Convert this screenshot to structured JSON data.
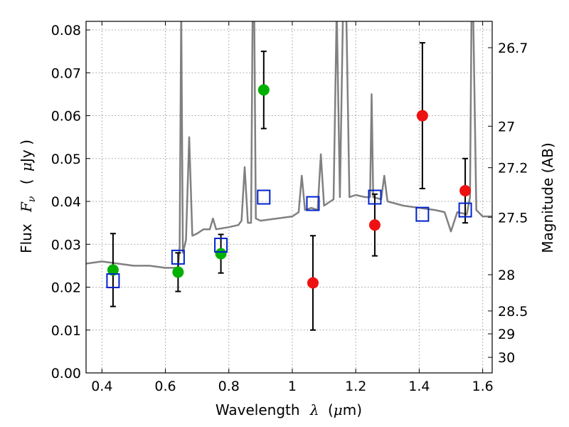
{
  "chart_data": {
    "type": "scatter",
    "x_axis": {
      "label_parts": {
        "text": "Wavelength",
        "symbol": "λ",
        "open": "(",
        "mu": "μ",
        "unit": "m)"
      },
      "range": [
        0.35,
        1.63
      ],
      "ticks": [
        0.4,
        0.6,
        0.8,
        1.0,
        1.2,
        1.4,
        1.6
      ],
      "tick_labels": [
        "0.4",
        "0.6",
        "0.8",
        "1",
        "1.2",
        "1.4",
        "1.6"
      ]
    },
    "y_axis": {
      "label_parts": {
        "text": "Flux",
        "symbol": "F",
        "subscript": "ν",
        "open": "(",
        "mu": "μ",
        "unit": "Jy )"
      },
      "range": [
        0.0,
        0.082
      ],
      "ticks": [
        0.0,
        0.01,
        0.02,
        0.03,
        0.04,
        0.05,
        0.06,
        0.07,
        0.08
      ],
      "tick_labels": [
        "0.00",
        "0.01",
        "0.02",
        "0.03",
        "0.04",
        "0.05",
        "0.06",
        "0.07",
        "0.08"
      ]
    },
    "y2_axis": {
      "label": "Magnitude (AB)",
      "ticks": [
        26.7,
        27.0,
        27.2,
        27.5,
        28.0,
        28.5,
        29.0,
        30.0
      ],
      "tick_labels": [
        "26.7",
        "27",
        "27.2",
        "27.5",
        "28",
        "28.5",
        "29",
        "30"
      ]
    },
    "grid": true,
    "series": [
      {
        "kind": "green_points",
        "color": "#00b000",
        "points": [
          {
            "x": 0.435,
            "y": 0.024,
            "err": 0.0085
          },
          {
            "x": 0.64,
            "y": 0.0235,
            "err": 0.0045
          },
          {
            "x": 0.775,
            "y": 0.0278,
            "err": 0.0045
          },
          {
            "x": 0.91,
            "y": 0.066,
            "err": 0.009
          }
        ]
      },
      {
        "kind": "red_points",
        "color": "#ee1111",
        "points": [
          {
            "x": 1.065,
            "y": 0.021,
            "err": 0.011
          },
          {
            "x": 1.26,
            "y": 0.0345,
            "err": 0.0072
          },
          {
            "x": 1.41,
            "y": 0.06,
            "err": 0.017
          },
          {
            "x": 1.545,
            "y": 0.0425,
            "err": 0.0075
          }
        ]
      },
      {
        "kind": "model_squares",
        "color": "#0022cc",
        "points": [
          {
            "x": 0.435,
            "y": 0.0215
          },
          {
            "x": 0.64,
            "y": 0.027
          },
          {
            "x": 0.775,
            "y": 0.0298
          },
          {
            "x": 0.91,
            "y": 0.041
          },
          {
            "x": 1.065,
            "y": 0.0395
          },
          {
            "x": 1.26,
            "y": 0.041
          },
          {
            "x": 1.41,
            "y": 0.037
          },
          {
            "x": 1.545,
            "y": 0.038
          }
        ]
      },
      {
        "kind": "model_spectrum",
        "color": "#808080",
        "points": [
          [
            0.35,
            0.0255
          ],
          [
            0.4,
            0.026
          ],
          [
            0.45,
            0.0255
          ],
          [
            0.5,
            0.025
          ],
          [
            0.55,
            0.025
          ],
          [
            0.6,
            0.0245
          ],
          [
            0.64,
            0.0245
          ],
          [
            0.645,
            0.0295
          ],
          [
            0.65,
            0.085
          ],
          [
            0.655,
            0.028
          ],
          [
            0.665,
            0.031
          ],
          [
            0.675,
            0.055
          ],
          [
            0.685,
            0.032
          ],
          [
            0.7,
            0.0325
          ],
          [
            0.72,
            0.0335
          ],
          [
            0.74,
            0.0335
          ],
          [
            0.75,
            0.036
          ],
          [
            0.76,
            0.0335
          ],
          [
            0.8,
            0.034
          ],
          [
            0.83,
            0.0345
          ],
          [
            0.84,
            0.0355
          ],
          [
            0.85,
            0.048
          ],
          [
            0.86,
            0.035
          ],
          [
            0.87,
            0.035
          ],
          [
            0.875,
            0.085
          ],
          [
            0.88,
            0.085
          ],
          [
            0.885,
            0.036
          ],
          [
            0.9,
            0.0355
          ],
          [
            0.95,
            0.036
          ],
          [
            1.0,
            0.0365
          ],
          [
            1.02,
            0.0375
          ],
          [
            1.03,
            0.046
          ],
          [
            1.04,
            0.038
          ],
          [
            1.06,
            0.0385
          ],
          [
            1.08,
            0.038
          ],
          [
            1.09,
            0.051
          ],
          [
            1.1,
            0.039
          ],
          [
            1.12,
            0.04
          ],
          [
            1.13,
            0.0405
          ],
          [
            1.14,
            0.085
          ],
          [
            1.15,
            0.041
          ],
          [
            1.16,
            0.085
          ],
          [
            1.17,
            0.085
          ],
          [
            1.18,
            0.041
          ],
          [
            1.2,
            0.0415
          ],
          [
            1.23,
            0.041
          ],
          [
            1.245,
            0.041
          ],
          [
            1.25,
            0.065
          ],
          [
            1.255,
            0.041
          ],
          [
            1.28,
            0.0405
          ],
          [
            1.29,
            0.046
          ],
          [
            1.3,
            0.04
          ],
          [
            1.35,
            0.039
          ],
          [
            1.4,
            0.0385
          ],
          [
            1.45,
            0.038
          ],
          [
            1.48,
            0.0375
          ],
          [
            1.5,
            0.033
          ],
          [
            1.52,
            0.0375
          ],
          [
            1.55,
            0.037
          ],
          [
            1.56,
            0.041
          ],
          [
            1.565,
            0.085
          ],
          [
            1.57,
            0.085
          ],
          [
            1.58,
            0.038
          ],
          [
            1.6,
            0.0365
          ],
          [
            1.63,
            0.0365
          ]
        ]
      }
    ]
  }
}
